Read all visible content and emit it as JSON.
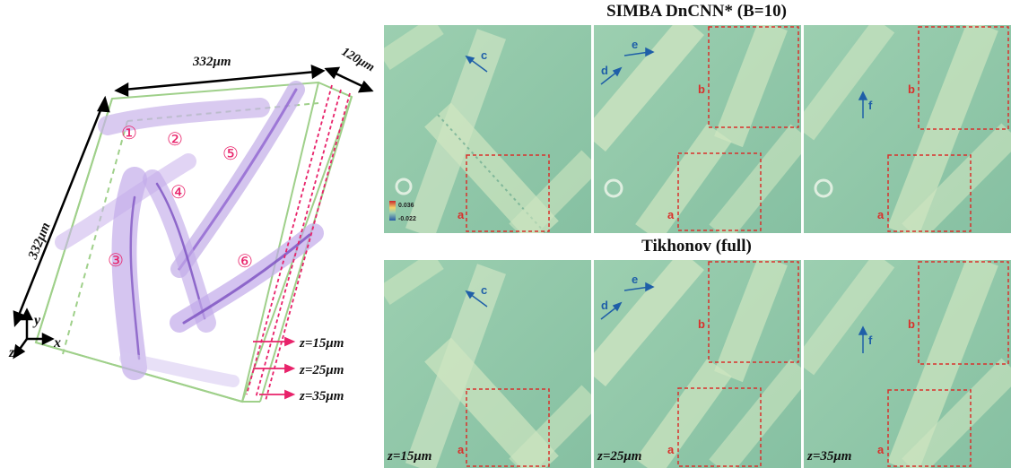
{
  "volume": {
    "width_label": "332μm",
    "height_label": "332μm",
    "depth_label": "120μm",
    "axes": {
      "x": "x",
      "y": "y",
      "z": "z"
    },
    "vessels": [
      "①",
      "②",
      "③",
      "④",
      "⑤",
      "⑥"
    ],
    "slices": [
      "z=15μm",
      "z=25μm",
      "z=35μm"
    ]
  },
  "rows": [
    {
      "title": "SIMBA DnCNN* (B=10)"
    },
    {
      "title": "Tikhonov (full)"
    }
  ],
  "colorbar": {
    "max": "0.036",
    "min": "-0.022"
  },
  "column_depths": [
    "z=15μm",
    "z=25μm",
    "z=35μm"
  ],
  "panel_annotations": [
    {
      "arrow": "c",
      "box": "a"
    },
    {
      "arrows": [
        "d",
        "e"
      ],
      "boxes": [
        "b",
        "a"
      ]
    },
    {
      "arrow": "f",
      "boxes": [
        "b",
        "a"
      ]
    }
  ],
  "colors": {
    "box": "#d9302b",
    "arrow": "#1f5fa8",
    "bg": "#8fc7a6",
    "volume_edge": "#9fd08a",
    "vessel": "#7b4fc0",
    "marker": "#e8226a"
  }
}
